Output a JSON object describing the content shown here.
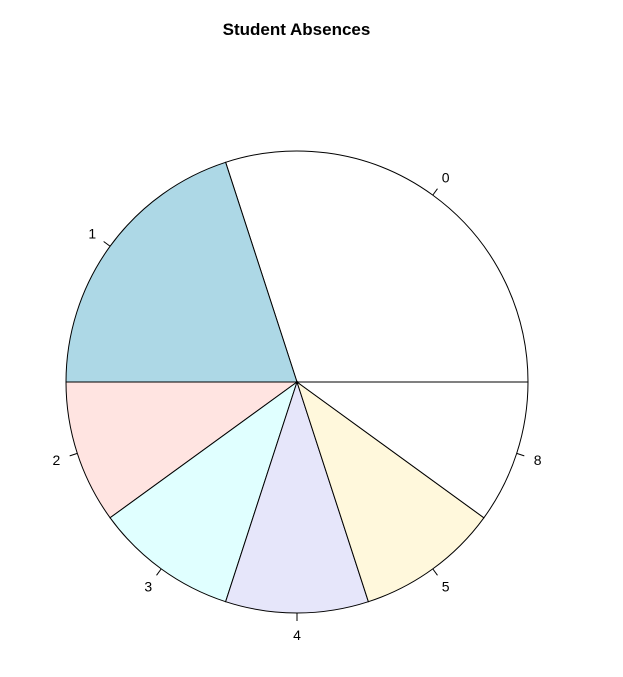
{
  "chart_data": {
    "type": "pie",
    "title": "Student Absences",
    "categories": [
      "0",
      "1",
      "2",
      "3",
      "4",
      "5",
      "8"
    ],
    "values": [
      3,
      2,
      1,
      1,
      1,
      1,
      1
    ],
    "colors": [
      "#FFFFFF",
      "#ADD8E6",
      "#FFE4E1",
      "#E0FFFF",
      "#E6E6FA",
      "#FFF8DC",
      "#FFFFFF"
    ],
    "start_angle_deg": 0,
    "direction": "counterclockwise"
  }
}
